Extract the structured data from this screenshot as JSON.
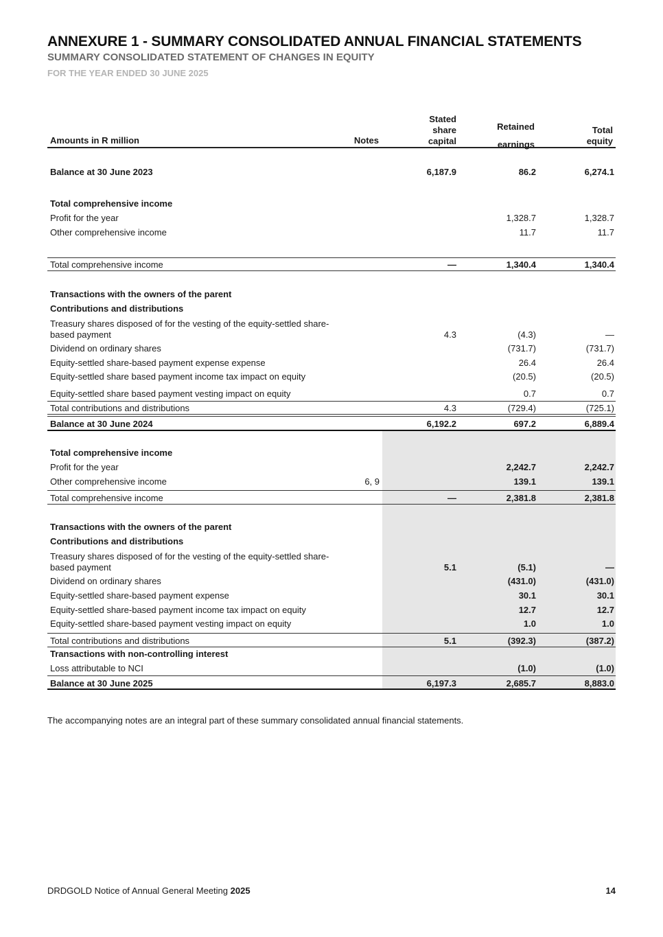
{
  "title": "ANNEXURE 1 - SUMMARY CONSOLIDATED ANNUAL FINANCIAL STATEMENTS",
  "subtitle": "SUMMARY CONSOLIDATED STATEMENT OF CHANGES IN EQUITY",
  "period": "FOR THE YEAR ENDED 30 JUNE 2025",
  "table": {
    "headers": {
      "label": "Amounts in R million",
      "notes": "Notes",
      "capital": [
        "Stated",
        "share",
        "capital"
      ],
      "retained": [
        "Retained",
        "earnings"
      ],
      "total": [
        "Total",
        "equity"
      ]
    },
    "rows": [
      {
        "label": "Balance at 30 June 2023",
        "notes": "",
        "capital": "6,187.9",
        "retained": "86.2",
        "total": "6,274.1",
        "bold": true,
        "bold_values": true
      },
      {
        "label": "Total comprehensive income",
        "notes": "",
        "capital": "",
        "retained": "",
        "total": "",
        "bold": true,
        "bold_values": false
      },
      {
        "label": "Profit for the year",
        "notes": "",
        "capital": "",
        "retained": "1,328.7",
        "total": "1,328.7",
        "bold": false,
        "bold_values": false
      },
      {
        "label": "Other comprehensive income",
        "notes": "",
        "capital": "",
        "retained": "11.7",
        "total": "11.7",
        "bold": false,
        "bold_values": false
      },
      {
        "label": "Total comprehensive income",
        "notes": "",
        "capital": "—",
        "retained": "1,340.4",
        "total": "1,340.4",
        "bold": false,
        "bold_values": true
      },
      {
        "label": "Transactions with the owners of the parent",
        "notes": "",
        "capital": "",
        "retained": "",
        "total": "",
        "bold": true,
        "bold_values": false
      },
      {
        "label": "Contributions and distributions",
        "notes": "",
        "capital": "",
        "retained": "",
        "total": "",
        "bold": true,
        "bold_values": false
      },
      {
        "label": "Treasury shares disposed of for the vesting of the equity-settled share-based payment",
        "notes": "",
        "capital": "4.3",
        "retained": "(4.3)",
        "total": "—",
        "bold": false,
        "bold_values": false
      },
      {
        "label": "Dividend on ordinary shares",
        "notes": "",
        "capital": "",
        "retained": "(731.7)",
        "total": "(731.7)",
        "bold": false,
        "bold_values": false
      },
      {
        "label": "Equity-settled share-based payment expense expense",
        "notes": "",
        "capital": "",
        "retained": "26.4",
        "total": "26.4",
        "bold": false,
        "bold_values": false
      },
      {
        "label": "Equity-settled share based payment income tax impact on equity",
        "notes": "",
        "capital": "",
        "retained": "(20.5)",
        "total": "(20.5)",
        "bold": false,
        "bold_values": false
      },
      {
        "label": "Equity-settled share based payment vesting impact on equity",
        "notes": "",
        "capital": "",
        "retained": "0.7",
        "total": "0.7",
        "bold": false,
        "bold_values": false
      },
      {
        "label": "Total contributions and distributions",
        "notes": "",
        "capital": "4.3",
        "retained": "(729.4)",
        "total": "(725.1)",
        "bold": false,
        "bold_values": false
      },
      {
        "label": "Balance at 30 June 2024",
        "notes": "",
        "capital": "6,192.2",
        "retained": "697.2",
        "total": "6,889.4",
        "bold": true,
        "bold_values": true
      },
      {
        "label": "Total comprehensive income",
        "notes": "",
        "capital": "",
        "retained": "",
        "total": "",
        "bold": true,
        "bold_values": true
      },
      {
        "label": "Profit for the year",
        "notes": "",
        "capital": "",
        "retained": "2,242.7",
        "total": "2,242.7",
        "bold": false,
        "bold_values": true
      },
      {
        "label": "Other comprehensive income",
        "notes": "6, 9",
        "capital": "",
        "retained": "139.1",
        "total": "139.1",
        "bold": false,
        "bold_values": true
      },
      {
        "label": "Total comprehensive income",
        "notes": "",
        "capital": "—",
        "retained": "2,381.8",
        "total": "2,381.8",
        "bold": false,
        "bold_values": true
      },
      {
        "label": "Transactions with the owners of the parent",
        "notes": "",
        "capital": "",
        "retained": "",
        "total": "",
        "bold": true,
        "bold_values": true
      },
      {
        "label": "Contributions and distributions",
        "notes": "",
        "capital": "",
        "retained": "",
        "total": "",
        "bold": true,
        "bold_values": true
      },
      {
        "label": "Treasury shares disposed of for the vesting of the equity-settled share-based payment",
        "notes": "",
        "capital": "5.1",
        "retained": "(5.1)",
        "total": "—",
        "bold": false,
        "bold_values": true
      },
      {
        "label": "Dividend on ordinary shares",
        "notes": "",
        "capital": "",
        "retained": "(431.0)",
        "total": "(431.0)",
        "bold": false,
        "bold_values": true
      },
      {
        "label": "Equity-settled share-based payment expense",
        "notes": "",
        "capital": "",
        "retained": "30.1",
        "total": "30.1",
        "bold": false,
        "bold_values": true
      },
      {
        "label": "Equity-settled share-based payment income tax impact on equity",
        "notes": "",
        "capital": "",
        "retained": "12.7",
        "total": "12.7",
        "bold": false,
        "bold_values": true
      },
      {
        "label": "Equity-settled share-based payment vesting impact on equity",
        "notes": "",
        "capital": "",
        "retained": "1.0",
        "total": "1.0",
        "bold": false,
        "bold_values": true
      },
      {
        "label": "Total contributions and distributions",
        "notes": "",
        "capital": "5.1",
        "retained": "(392.3)",
        "total": "(387.2)",
        "bold": false,
        "bold_values": true
      },
      {
        "label": "Transactions with non-controlling interest",
        "notes": "",
        "capital": "",
        "retained": "",
        "total": "",
        "bold": true,
        "bold_values": true
      },
      {
        "label": "Loss attributable to NCI",
        "notes": "",
        "capital": "",
        "retained": "(1.0)",
        "total": "(1.0)",
        "bold": false,
        "bold_values": true
      },
      {
        "label": "Balance at 30 June 2025",
        "notes": "",
        "capital": "6,197.3",
        "retained": "2,685.7",
        "total": "8,883.0",
        "bold": true,
        "bold_values": true
      }
    ]
  },
  "footnote": "The accompanying notes are an integral part of these summary consolidated annual financial statements.",
  "footer": {
    "text": "DRDGOLD Notice of Annual General Meeting ",
    "year": "2025",
    "page": "14"
  }
}
